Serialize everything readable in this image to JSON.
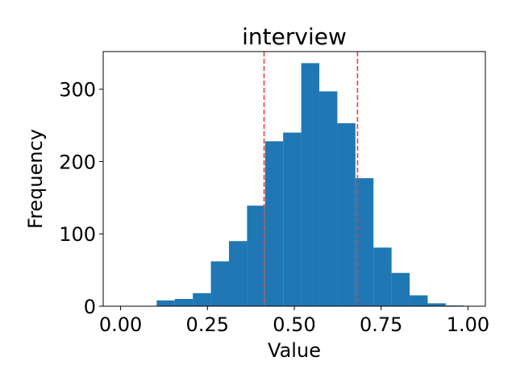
{
  "chart_data": {
    "type": "bar",
    "title": "interview",
    "xlabel": "Value",
    "ylabel": "Frequency",
    "xlim": [
      -0.05,
      1.05
    ],
    "ylim": [
      0,
      352
    ],
    "xticks": [
      0.0,
      0.25,
      0.5,
      0.75,
      1.0
    ],
    "xtick_labels": [
      "0.00",
      "0.25",
      "0.50",
      "0.75",
      "1.00"
    ],
    "yticks": [
      0,
      100,
      200,
      300
    ],
    "ytick_labels": [
      "0",
      "100",
      "200",
      "300"
    ],
    "bin_edges": [
      0.0,
      0.052,
      0.104,
      0.156,
      0.208,
      0.26,
      0.312,
      0.364,
      0.416,
      0.468,
      0.52,
      0.572,
      0.624,
      0.676,
      0.728,
      0.78,
      0.832,
      0.884,
      0.936,
      0.988
    ],
    "values": [
      0,
      0,
      8,
      10,
      18,
      62,
      90,
      139,
      228,
      240,
      336,
      297,
      253,
      177,
      81,
      46,
      15,
      4,
      1
    ],
    "bar_color": "#1f77b4",
    "vlines": [
      {
        "x": 0.413,
        "color": "#e8413a",
        "style": "dashed"
      },
      {
        "x": 0.682,
        "color": "#e8413a",
        "style": "dashed"
      }
    ],
    "grid": false,
    "legend": "none"
  }
}
